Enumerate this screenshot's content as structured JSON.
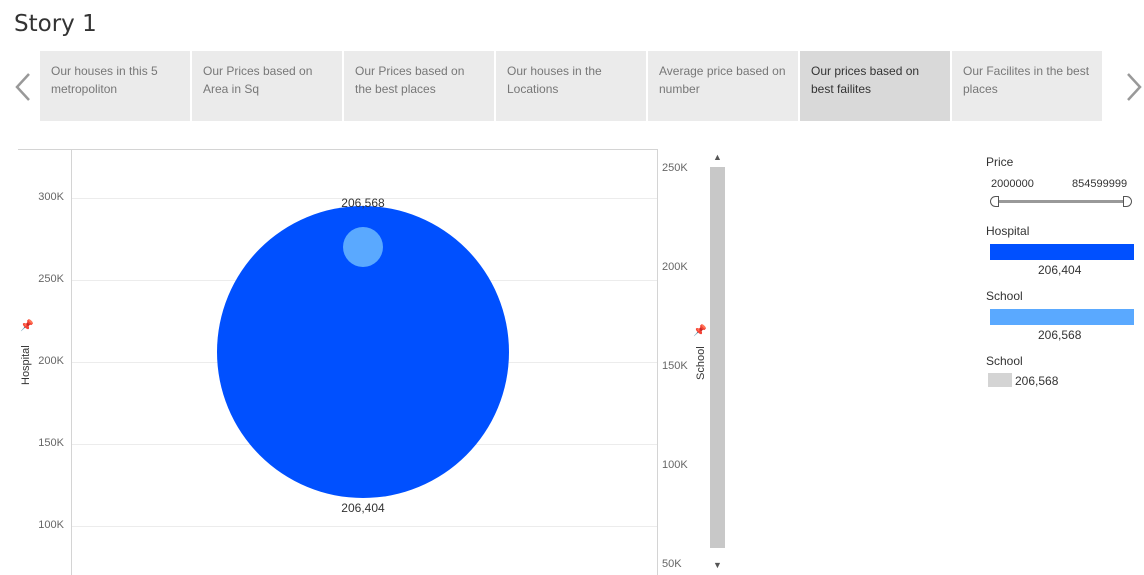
{
  "story": {
    "title": "Story 1"
  },
  "tabs": [
    {
      "label": "Our houses in this 5 metropoliton",
      "active": false
    },
    {
      "label": "Our Prices based on Area in Sq",
      "active": false
    },
    {
      "label": "Our Prices based on the best places",
      "active": false
    },
    {
      "label": "Our houses in the Locations",
      "active": false
    },
    {
      "label": "Average price based on number",
      "active": false
    },
    {
      "label": "Our prices based on best failites",
      "active": true
    },
    {
      "label": "Our Facilites in the best places",
      "active": false
    }
  ],
  "chart_data": {
    "type": "scatter",
    "left_axis": {
      "label": "Hospital",
      "ticks": [
        "300K",
        "250K",
        "200K",
        "150K",
        "100K"
      ],
      "range": [
        70000,
        330000
      ]
    },
    "right_axis": {
      "label": "School",
      "ticks": [
        "250K",
        "200K",
        "150K",
        "100K",
        "50K"
      ],
      "range": [
        45000,
        260000
      ]
    },
    "series": [
      {
        "name": "Hospital",
        "value": 206404,
        "label": "206,404",
        "color": "#0050ff"
      },
      {
        "name": "School",
        "value": 206568,
        "label": "206,568",
        "color": "#5aa9ff"
      }
    ],
    "grid": true
  },
  "legend": {
    "price": {
      "title": "Price",
      "min": "2000000",
      "max": "854599999"
    },
    "hospital": {
      "title": "Hospital",
      "value": "206,404",
      "color": "#0050ff"
    },
    "school": {
      "title": "School",
      "value": "206,568",
      "color": "#5aa9ff"
    },
    "school_size": {
      "title": "School",
      "value": "206,568",
      "color": "#d4d4d4"
    }
  }
}
